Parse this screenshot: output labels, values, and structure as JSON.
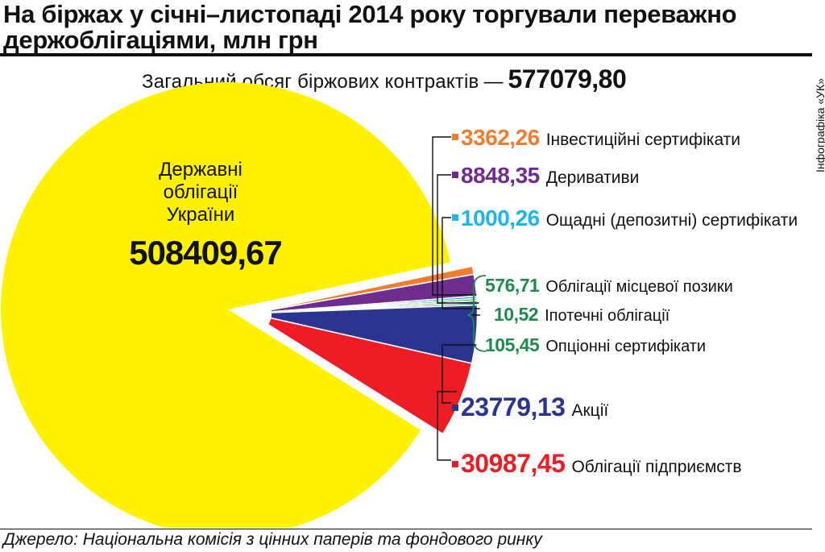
{
  "title": "На біржах у січні–листопаді 2014 року торгували переважно держоблігаціями, млн грн",
  "total": {
    "label": "Загальний обсяг біржових контрактів",
    "dash": "—",
    "value": "577079,80"
  },
  "credit": "Інфографіка «УК»",
  "source": "Джерело: Національна комісія з цінних паперів та фондового ринку",
  "colors": {
    "yellow": "#FFF200",
    "orange": "#F07C2E",
    "purple": "#6E2D8E",
    "cyan": "#20B5E8",
    "green": "#1F8A4C",
    "navy": "#2B3490",
    "red": "#EE1C25"
  },
  "chart_data": {
    "type": "pie",
    "unit": "млн грн",
    "total": 577079.8,
    "slices": [
      {
        "label": "Державні облігації України",
        "value": 508409.67,
        "display": "508409,67",
        "color": "#FFF200"
      },
      {
        "label": "Інвестиційні сертифікати",
        "value": 3362.26,
        "display": "3362,26",
        "color": "#F07C2E"
      },
      {
        "label": "Деривативи",
        "value": 8848.35,
        "display": "8848,35",
        "color": "#6E2D8E"
      },
      {
        "label": "Ощадні (депозитні) сертифікати",
        "value": 1000.26,
        "display": "1000,26",
        "color": "#20B5E8"
      },
      {
        "label": "Облігації місцевої позики",
        "value": 576.71,
        "display": "576,71",
        "color": "#1F8A4C"
      },
      {
        "label": "Іпотечні облігації",
        "value": 10.52,
        "display": "10,52",
        "color": "#1F8A4C"
      },
      {
        "label": "Опціонні сертифікати",
        "value": 105.45,
        "display": "105,45",
        "color": "#1F8A4C"
      },
      {
        "label": "Акції",
        "value": 23779.13,
        "display": "23779,13",
        "color": "#2B3490"
      },
      {
        "label": "Облігації підприємств",
        "value": 30987.45,
        "display": "30987,45",
        "color": "#EE1C25"
      }
    ]
  }
}
